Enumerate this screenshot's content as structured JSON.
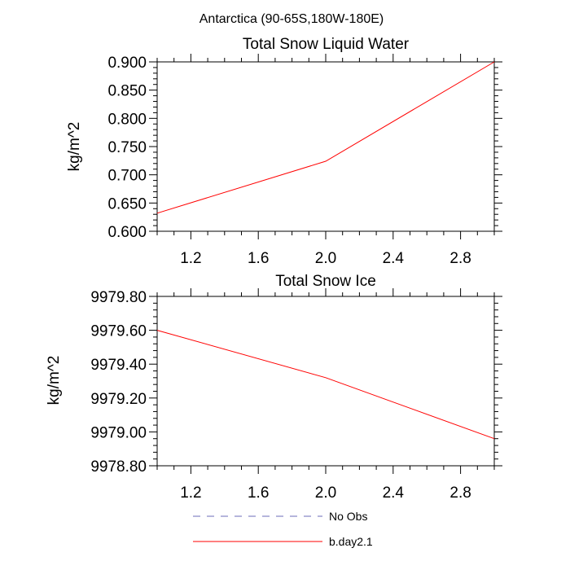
{
  "figure_title": "Antarctica (90-65S,180W-180E)",
  "chart_data": [
    {
      "type": "line",
      "title": "Total Snow Liquid Water",
      "xlabel": "",
      "ylabel": "kg/m^2",
      "xlim": [
        1.0,
        3.0
      ],
      "ylim": [
        0.6,
        0.9
      ],
      "x_ticks": [
        1.2,
        1.6,
        2.0,
        2.4,
        2.8
      ],
      "x_tick_labels": [
        "1.2",
        "1.6",
        "2.0",
        "2.4",
        "2.8"
      ],
      "y_ticks": [
        0.6,
        0.65,
        0.7,
        0.75,
        0.8,
        0.85,
        0.9
      ],
      "y_tick_labels": [
        "0.600",
        "0.650",
        "0.700",
        "0.750",
        "0.800",
        "0.850",
        "0.900"
      ],
      "x": [
        1.0,
        2.0,
        3.0
      ],
      "series": [
        {
          "name": "b.day2.1",
          "color": "#ff0000",
          "dash": "solid",
          "values": [
            0.632,
            0.724,
            0.9
          ]
        }
      ],
      "grid": false
    },
    {
      "type": "line",
      "title": "Total Snow Ice",
      "xlabel": "",
      "ylabel": "kg/m^2",
      "xlim": [
        1.0,
        3.0
      ],
      "ylim": [
        9978.8,
        9979.8
      ],
      "x_ticks": [
        1.2,
        1.6,
        2.0,
        2.4,
        2.8
      ],
      "x_tick_labels": [
        "1.2",
        "1.6",
        "2.0",
        "2.4",
        "2.8"
      ],
      "y_ticks": [
        9978.8,
        9979.0,
        9979.2,
        9979.4,
        9979.6,
        9979.8
      ],
      "y_tick_labels": [
        "9978.80",
        "9979.00",
        "9979.20",
        "9979.40",
        "9979.60",
        "9979.80"
      ],
      "x": [
        1.0,
        2.0,
        3.0
      ],
      "series": [
        {
          "name": "b.day2.1",
          "color": "#ff0000",
          "dash": "solid",
          "values": [
            9979.6,
            9979.32,
            9978.96
          ]
        }
      ],
      "grid": false
    }
  ],
  "legend": {
    "placement": "bottom-center",
    "entries": [
      {
        "label": "No Obs",
        "color": "#6b6bb8",
        "dash": "dashed"
      },
      {
        "label": "b.day2.1",
        "color": "#ff0000",
        "dash": "solid"
      }
    ]
  }
}
